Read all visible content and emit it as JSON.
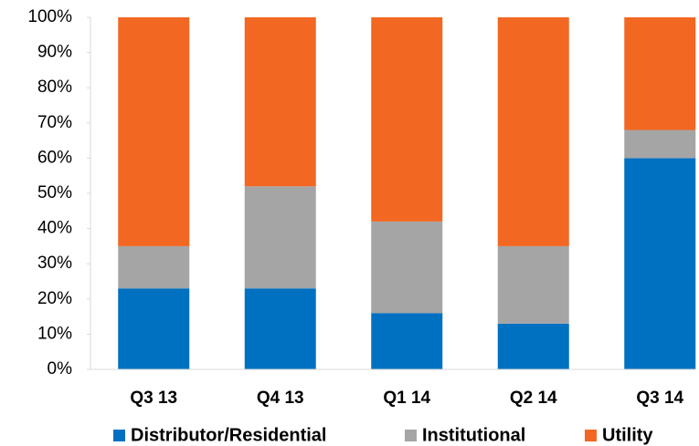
{
  "chart_data": {
    "type": "stacked_bar",
    "categories": [
      "Q3 13",
      "Q4 13",
      "Q1 14",
      "Q2 14",
      "Q3 14"
    ],
    "series": [
      {
        "name": "Distributor/Residential",
        "color": "#0070c0",
        "values": [
          23,
          23,
          16,
          13,
          60
        ]
      },
      {
        "name": "Institutional",
        "color": "#a5a5a5",
        "values": [
          12,
          29,
          26,
          22,
          8
        ]
      },
      {
        "name": "Utility",
        "color": "#f26722",
        "values": [
          65,
          48,
          58,
          65,
          32
        ]
      }
    ],
    "ylim": [
      0,
      100
    ],
    "yticks": [
      {
        "value": 0,
        "label": "0%"
      },
      {
        "value": 10,
        "label": "10%"
      },
      {
        "value": 20,
        "label": "20%"
      },
      {
        "value": 30,
        "label": "30%"
      },
      {
        "value": 40,
        "label": "40%"
      },
      {
        "value": 50,
        "label": "50%"
      },
      {
        "value": 60,
        "label": "60%"
      },
      {
        "value": 70,
        "label": "70%"
      },
      {
        "value": 80,
        "label": "80%"
      },
      {
        "value": 90,
        "label": "90%"
      },
      {
        "value": 100,
        "label": "100%"
      }
    ],
    "legend": "bottom"
  }
}
